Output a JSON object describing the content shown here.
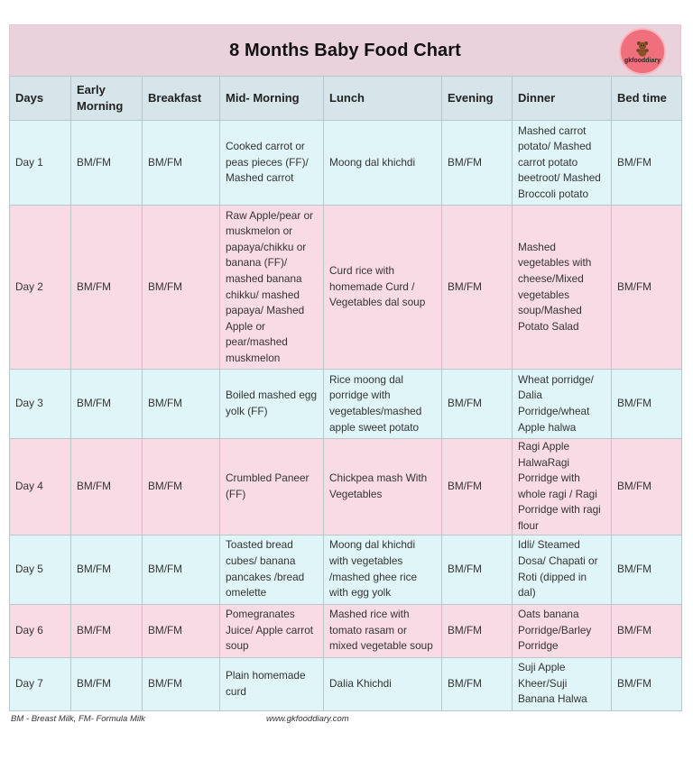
{
  "title": "8 Months Baby Food Chart",
  "logo": {
    "text": "gkfooddiary",
    "icon": "teddy-bear-icon",
    "color": "#ef6f7c"
  },
  "colors": {
    "header_bg": "#ead2dc",
    "columns_header_bg": "#d5e5ea",
    "row_cyan": "#e0f5f7",
    "row_pink": "#f9dbe5"
  },
  "columns": [
    "Days",
    "Early Morning",
    "Breakfast",
    "Mid- Morning",
    "Lunch",
    "Evening",
    "Dinner",
    "Bed time"
  ],
  "rows": [
    {
      "day": "Day 1",
      "early_morning": "BM/FM",
      "breakfast": "BM/FM",
      "mid_morning": "Cooked carrot or peas pieces (FF)/ Mashed carrot",
      "lunch": "Moong dal khichdi",
      "evening": "BM/FM",
      "dinner": "Mashed carrot potato/ Mashed carrot potato beetroot/ Mashed Broccoli potato",
      "bed_time": "BM/FM"
    },
    {
      "day": "Day 2",
      "early_morning": "BM/FM",
      "breakfast": "BM/FM",
      "mid_morning": "Raw Apple/pear or muskmelon or papaya/chikku or banana (FF)/ mashed banana chikku/ mashed papaya/ Mashed Apple or pear/mashed muskmelon",
      "lunch": "Curd rice with homemade Curd / Vegetables dal soup",
      "evening": "BM/FM",
      "dinner": "Mashed vegetables with cheese/Mixed vegetables soup/Mashed Potato Salad",
      "bed_time": "BM/FM"
    },
    {
      "day": "Day 3",
      "early_morning": "BM/FM",
      "breakfast": "BM/FM",
      "mid_morning": "Boiled mashed egg yolk (FF)",
      "lunch": "Rice moong dal porridge with vegetables/mashed apple sweet potato",
      "evening": "BM/FM",
      "dinner": "Wheat porridge/ Dalia Porridge/wheat Apple halwa",
      "bed_time": "BM/FM"
    },
    {
      "day": "Day 4",
      "early_morning": "BM/FM",
      "breakfast": "BM/FM",
      "mid_morning": "Crumbled Paneer (FF)",
      "lunch": "Chickpea mash With Vegetables",
      "evening": "BM/FM",
      "dinner": "Ragi Apple HalwaRagi Porridge with whole ragi / Ragi Porridge with ragi flour",
      "bed_time": "BM/FM"
    },
    {
      "day": "Day 5",
      "early_morning": "BM/FM",
      "breakfast": "BM/FM",
      "mid_morning": "Toasted bread cubes/ banana pancakes /bread omelette",
      "lunch": "Moong dal khichdi with vegetables /mashed ghee rice with egg yolk",
      "evening": "BM/FM",
      "dinner": "Idli/ Steamed Dosa/ Chapati or Roti (dipped in dal)",
      "bed_time": "BM/FM"
    },
    {
      "day": "Day 6",
      "early_morning": "BM/FM",
      "breakfast": "BM/FM",
      "mid_morning": "Pomegranates Juice/ Apple carrot soup",
      "lunch": "Mashed rice with tomato rasam or mixed vegetable soup",
      "evening": "BM/FM",
      "dinner": "Oats banana Porridge/Barley Porridge",
      "bed_time": "BM/FM"
    },
    {
      "day": "Day 7",
      "early_morning": "BM/FM",
      "breakfast": "BM/FM",
      "mid_morning": "Plain homemade curd",
      "lunch": "Dalia Khichdi",
      "evening": "BM/FM",
      "dinner": "Suji Apple Kheer/Suji Banana Halwa",
      "bed_time": "BM/FM"
    }
  ],
  "footer": {
    "legend": "BM - Breast Milk, FM- Formula Milk",
    "website": "www.gkfooddiary.com"
  }
}
